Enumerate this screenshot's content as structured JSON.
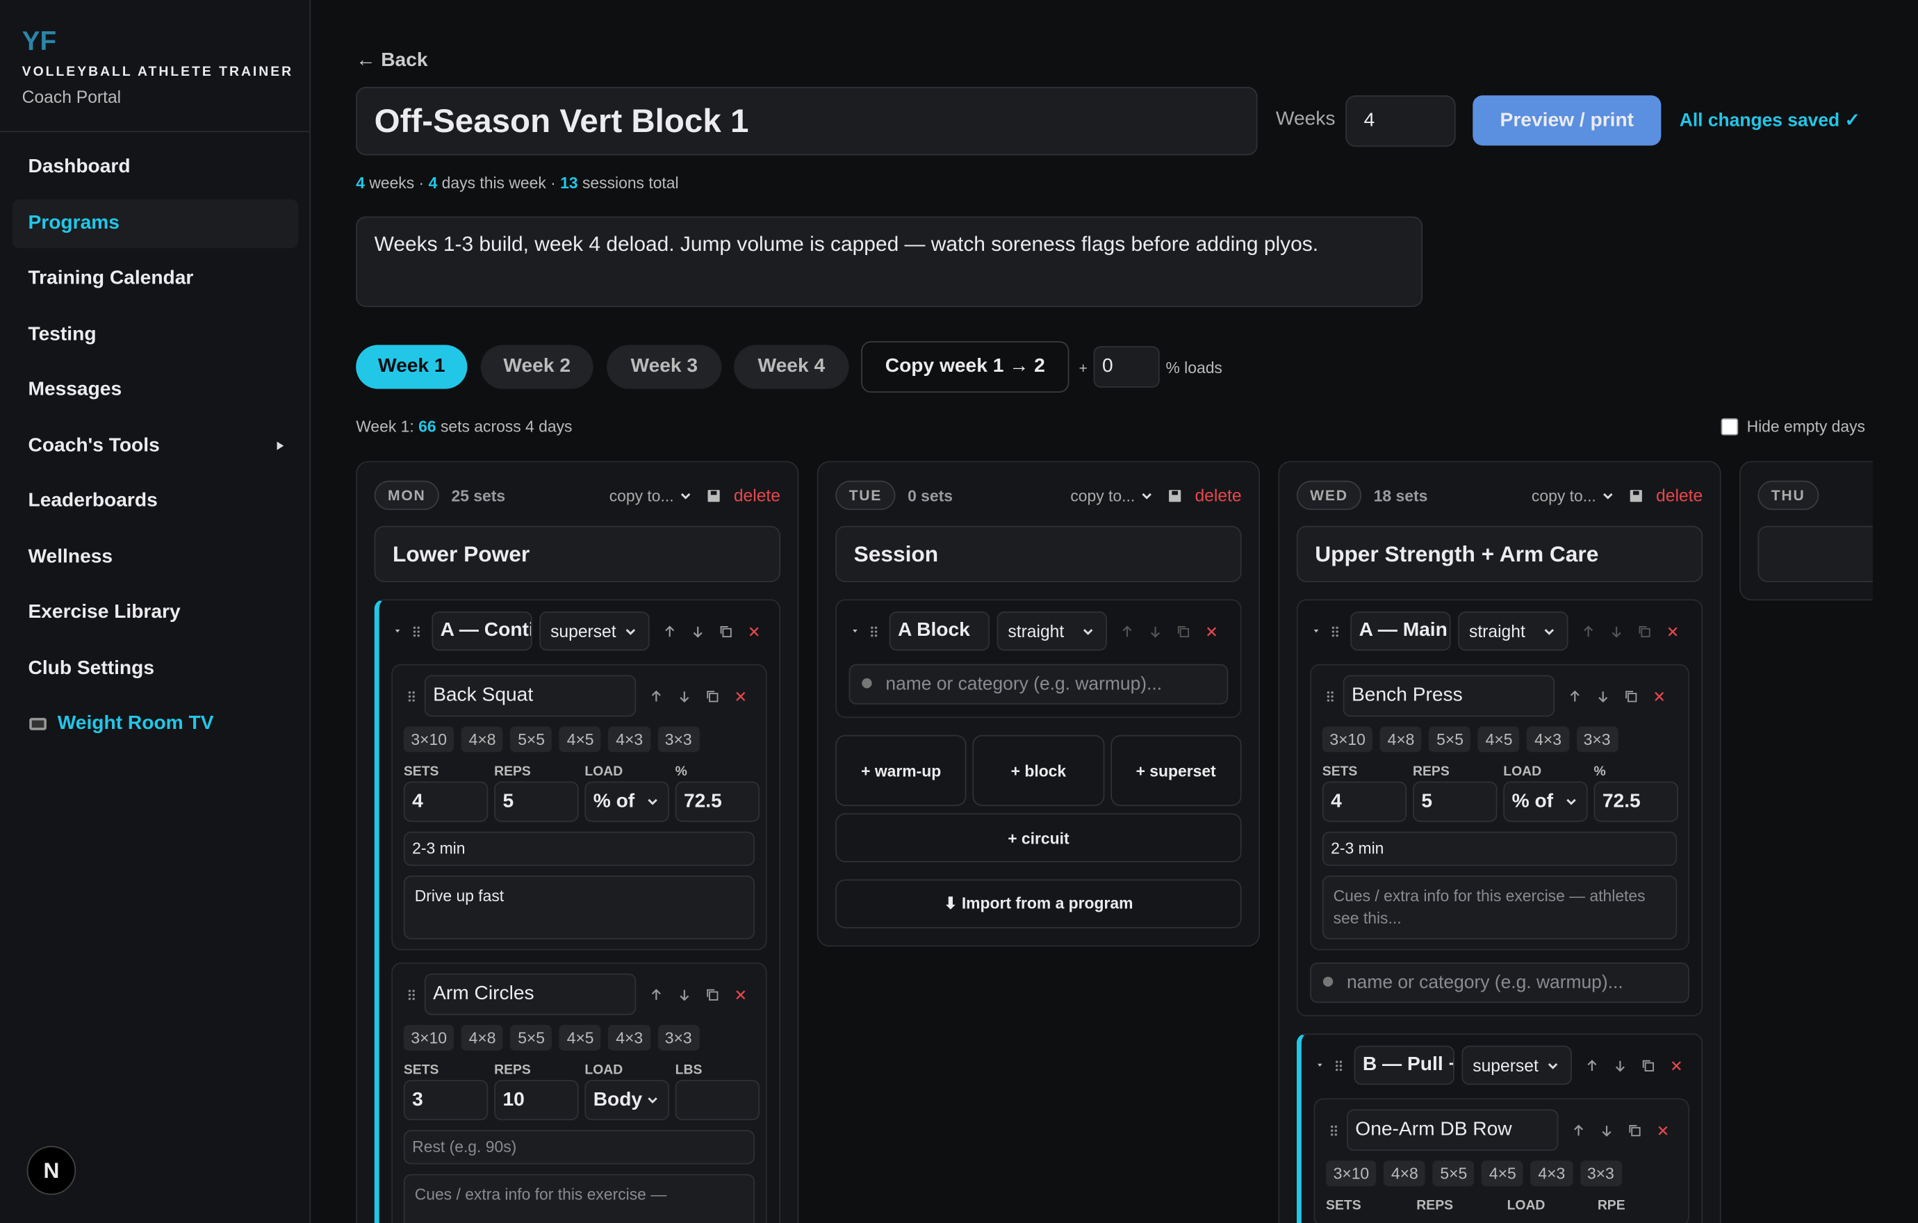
{
  "sidebar": {
    "logo": "YF",
    "brand": "VOLLEYBALL ATHLETE TRAINER",
    "subtitle": "Coach Portal",
    "nav": [
      "Dashboard",
      "Programs",
      "Training Calendar",
      "Testing",
      "Messages",
      "Coach's Tools",
      "Leaderboards",
      "Wellness",
      "Exercise Library",
      "Club Settings",
      "Weight Room TV"
    ],
    "avatar": "N"
  },
  "header": {
    "back": "← Back",
    "title": "Off-Season Vert Block 1",
    "weeks_label": "Weeks",
    "weeks": 4,
    "preview": "Preview / print",
    "saved": "All changes saved ✓"
  },
  "summary": {
    "weeks": 4,
    "weeks_text": "weeks ·",
    "days": 4,
    "days_text": "days this week ·",
    "sessions": 13,
    "sessions_text": "sessions total"
  },
  "notes": "Weeks 1-3 build, week 4 deload. Jump volume is capped — watch soreness flags before adding plyos.",
  "tabs": [
    "Week 1",
    "Week 2",
    "Week 3",
    "Week 4"
  ],
  "copy_week": "Copy week 1 → 2",
  "plus": "+",
  "load_pct": 0,
  "loads_label": "% loads",
  "week_summary": {
    "prefix": "Week 1:",
    "sets": 66,
    "suffix": "sets across 4 days"
  },
  "hide_empty": "Hide empty days",
  "day_actions": {
    "copy": "copy to...",
    "delete": "delete"
  },
  "presets": [
    "3×10",
    "4×8",
    "5×5",
    "4×5",
    "4×3",
    "3×3"
  ],
  "days": [
    {
      "day": "MON",
      "sets": "25 sets",
      "name": "Lower Power",
      "blocks": [
        {
          "name": "A — Conti",
          "type": "superset",
          "exercises": [
            {
              "name": "Back Squat",
              "labels": [
                "SETS",
                "REPS",
                "LOAD",
                "%"
              ],
              "values": [
                4,
                5,
                "% of",
                72.5
              ],
              "rest": "2-3 min",
              "notes": "Drive up fast"
            },
            {
              "name": "Arm Circles",
              "labels": [
                "SETS",
                "REPS",
                "LOAD",
                "LBS"
              ],
              "values": [
                3,
                10,
                "Body"
              ],
              "rest_placeholder": "Rest (e.g. 90s)",
              "notes_placeholder": "Cues / extra info for this exercise —"
            }
          ]
        }
      ]
    },
    {
      "day": "TUE",
      "sets": "0 sets",
      "name": "Session",
      "blocks": [
        {
          "name": "A Block",
          "type": "straight",
          "exercises": [],
          "search": "name or category (e.g. warmup)..."
        }
      ],
      "actions": [
        "+ warm-up",
        "+ block",
        "+ superset"
      ],
      "circuit": "+ circuit",
      "import": "⬇ Import from a program"
    },
    {
      "day": "WED",
      "sets": "18 sets",
      "name": "Upper Strength + Arm Care",
      "blocks": [
        {
          "name": "A — Main I",
          "type": "straight",
          "exercises": [
            {
              "name": "Bench Press",
              "labels": [
                "SETS",
                "REPS",
                "LOAD",
                "%"
              ],
              "values": [
                4,
                5,
                "% of",
                72.5
              ],
              "rest": "2-3 min",
              "notes_placeholder": "Cues / extra info for this exercise — athletes see this..."
            }
          ],
          "search": "name or category (e.g. warmup)..."
        },
        {
          "name": "B — Pull +",
          "type": "superset",
          "exercises": [
            {
              "name": "One-Arm DB Row",
              "labels": [
                "SETS",
                "REPS",
                "LOAD",
                "RPE"
              ],
              "values": []
            }
          ]
        }
      ]
    },
    {
      "day": "THU"
    }
  ]
}
